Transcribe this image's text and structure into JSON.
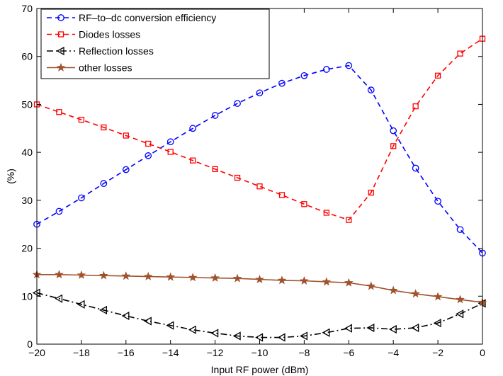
{
  "chart_data": {
    "type": "line",
    "xlabel": "Input RF power (dBm)",
    "ylabel": "(%)",
    "xlim": [
      -20,
      0
    ],
    "ylim": [
      0,
      70
    ],
    "xticks": [
      -20,
      -18,
      -16,
      -14,
      -12,
      -10,
      -8,
      -6,
      -4,
      -2,
      0
    ],
    "yticks": [
      0,
      10,
      20,
      30,
      40,
      50,
      60,
      70
    ],
    "xtick_labels": [
      "−20",
      "−18",
      "−16",
      "−14",
      "−12",
      "−10",
      "−8",
      "−6",
      "−4",
      "−2",
      "0"
    ],
    "ytick_labels": [
      "0",
      "10",
      "20",
      "30",
      "40",
      "50",
      "60",
      "70"
    ],
    "grid": false,
    "legend_position": "top-left",
    "x": [
      -20,
      -19,
      -18,
      -17,
      -16,
      -15,
      -14,
      -13,
      -12,
      -11,
      -10,
      -9,
      -8,
      -7,
      -6,
      -5,
      -4,
      -3,
      -2,
      -1,
      0
    ],
    "series": [
      {
        "name": "RF–to–dc conversion efficiency",
        "color": "#0000ff",
        "dash": "dashed",
        "marker": "circle",
        "values": [
          25,
          27.7,
          30.5,
          33.5,
          36.4,
          39.3,
          42.2,
          45.0,
          47.7,
          50.2,
          52.4,
          54.4,
          56.0,
          57.3,
          58.1,
          53.0,
          44.5,
          36.7,
          29.8,
          23.9,
          19.0
        ]
      },
      {
        "name": "Diodes losses",
        "color": "#ff0000",
        "dash": "dashed",
        "marker": "square",
        "values": [
          50.0,
          48.4,
          46.8,
          45.2,
          43.5,
          41.8,
          40.1,
          38.3,
          36.5,
          34.7,
          32.9,
          31.1,
          29.2,
          27.4,
          25.9,
          31.6,
          41.3,
          49.6,
          56.0,
          60.6,
          63.7
        ]
      },
      {
        "name": "Reflection losses",
        "color": "#000000",
        "dash": "dashdot",
        "marker": "triangle-left",
        "values": [
          10.7,
          9.5,
          8.3,
          7.1,
          5.9,
          4.8,
          3.9,
          3.0,
          2.3,
          1.7,
          1.4,
          1.4,
          1.7,
          2.4,
          3.3,
          3.4,
          3.1,
          3.4,
          4.4,
          6.3,
          8.5
        ]
      },
      {
        "name": "other losses",
        "color": "#a0522d",
        "dash": "solid",
        "marker": "star",
        "values": [
          14.5,
          14.5,
          14.4,
          14.3,
          14.2,
          14.1,
          14.0,
          13.9,
          13.8,
          13.7,
          13.5,
          13.3,
          13.2,
          13.0,
          12.8,
          12.1,
          11.2,
          10.5,
          9.9,
          9.3,
          8.7
        ]
      }
    ]
  }
}
